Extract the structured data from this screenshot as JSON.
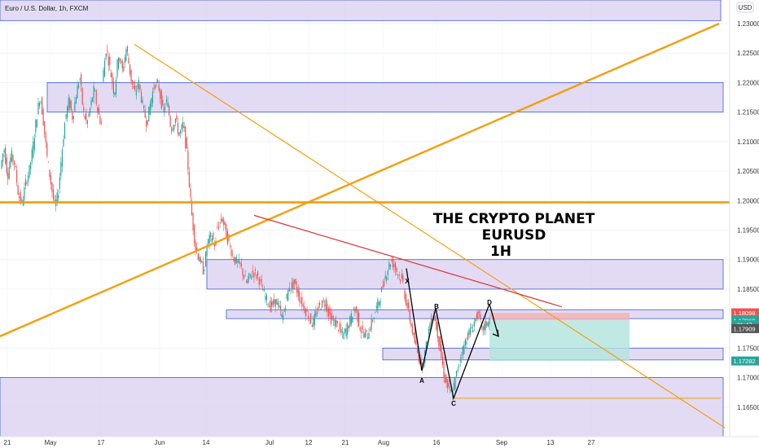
{
  "header": {
    "title": "Euro / U.S. Dollar, 1h, FXCM",
    "currency": "USD"
  },
  "watermark": {
    "line1": "THE CRYPTO PLANET",
    "line2": "EURUSD",
    "line3": "1H"
  },
  "pattern_points": [
    "X",
    "A",
    "B",
    "C",
    "D"
  ],
  "colors": {
    "up": "#26a69a",
    "down": "#ef5350",
    "zone_fill": "#d9cff0",
    "zone_stroke": "#3b5bdb",
    "trend": "#f59e0b",
    "support": "#f59e0b",
    "red_trend": "#e03131",
    "pattern": "#000000",
    "stop": "#f3b1b1",
    "target": "#b2e3dd"
  },
  "chart_data": {
    "type": "candlestick",
    "x_ticks": [
      "21",
      "May",
      "17",
      "Jun",
      "14",
      "Jul",
      "12",
      "21",
      "Aug",
      "16",
      "Sep",
      "13",
      "27"
    ],
    "y_ticks": [
      "1.23000",
      "1.22500",
      "1.22000",
      "1.21500",
      "1.21000",
      "1.20500",
      "1.20000",
      "1.19500",
      "1.19000",
      "1.18500",
      "1.17500",
      "1.17000",
      "1.16500"
    ],
    "ylim": [
      1.16,
      1.234
    ],
    "price_path": [
      [
        1.2055,
        1.209,
        1.204,
        1.208,
        1.206,
        1.201,
        1.1995,
        1.203,
        1.205,
        1.209,
        1.214,
        1.218,
        1.213,
        1.207,
        1.203,
        1.199,
        1.201,
        1.208,
        1.214,
        1.217,
        1.214,
        1.218,
        1.221,
        1.215,
        1.213,
        1.216,
        1.219,
        1.215,
        1.213
      ],
      [
        1.22,
        1.226,
        1.222,
        1.218,
        1.225,
        1.222,
        1.226,
        1.221,
        1.218,
        1.22,
        1.216,
        1.213,
        1.217,
        1.22,
        1.219,
        1.215,
        1.217,
        1.212,
        1.214,
        1.211,
        1.213,
        1.207,
        1.198,
        1.192,
        1.19,
        1.188,
        1.193,
        1.194,
        1.192
      ],
      [
        1.195,
        1.197,
        1.193,
        1.19,
        1.189,
        1.186,
        1.188,
        1.187,
        1.184,
        1.182,
        1.183,
        1.18,
        1.185,
        1.186,
        1.183,
        1.181,
        1.179,
        1.182,
        1.183,
        1.18,
        1.179,
        1.177,
        1.179,
        1.182,
        1.178,
        1.177,
        1.18,
        1.183,
        1.187,
        1.19,
        1.188,
        1.186
      ],
      [
        1.185,
        1.182,
        1.179,
        1.176,
        1.1735,
        1.172,
        1.175,
        1.179,
        1.181,
        1.178,
        1.174,
        1.17,
        1.168,
        1.167,
        1.17,
        1.173,
        1.175,
        1.177,
        1.178,
        1.1795,
        1.181,
        1.178,
        1.179,
        1.1797
      ]
    ],
    "path_x_ranges": [
      [
        2,
        127
      ],
      [
        127,
        267
      ],
      [
        267,
        497
      ],
      [
        497,
        603
      ]
    ],
    "zones": [
      {
        "y": [
          1.2305,
          1.234
        ],
        "x": [
          0,
          885
        ]
      },
      {
        "y": [
          1.215,
          1.22
        ],
        "x": [
          58,
          888
        ]
      },
      {
        "y": [
          1.185,
          1.19
        ],
        "x": [
          254,
          888
        ]
      },
      {
        "y": [
          1.18,
          1.1815
        ],
        "x": [
          278,
          888
        ]
      },
      {
        "y": [
          1.173,
          1.175
        ],
        "x": [
          470,
          888
        ]
      },
      {
        "y": [
          1.16,
          1.17
        ],
        "x": [
          0,
          888
        ]
      }
    ],
    "support_line": {
      "y": 1.1997
    },
    "uptrend": {
      "from": [
        0,
        1.177
      ],
      "to": [
        883,
        1.23
      ]
    },
    "downtrend": {
      "from": [
        165,
        1.2265
      ],
      "to": [
        890,
        1.1615
      ]
    },
    "red_trend": {
      "from": [
        312,
        1.1975
      ],
      "to": [
        690,
        1.182
      ]
    },
    "c_support": {
      "y": 1.1665,
      "x": [
        558,
        885
      ]
    },
    "harmonic": {
      "X": [
        499,
        1.1885
      ],
      "A": [
        518,
        1.1712
      ],
      "B": [
        535,
        1.1818
      ],
      "C": [
        557,
        1.1665
      ],
      "D": [
        601,
        1.1825
      ],
      "arrow_to": [
        612,
        1.177
      ]
    },
    "position": {
      "x": [
        601,
        773
      ],
      "stop": [
        1.18098,
        1.1797
      ],
      "target": [
        1.1797,
        1.17282
      ]
    },
    "price_tags": [
      {
        "value": "1.18098",
        "color": "#ef5350",
        "y": 1.18098
      },
      {
        "value": "1.17969",
        "color": "#26a69a",
        "y": 1.17969
      },
      {
        "value": "21:47",
        "color": "#26a69a",
        "y": 1.17895
      },
      {
        "value": "1.17909",
        "color": "#555555",
        "y": 1.1783
      },
      {
        "value": "1.17282",
        "color": "#26a69a",
        "y": 1.17282
      }
    ]
  }
}
